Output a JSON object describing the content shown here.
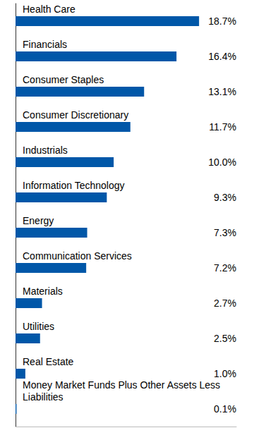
{
  "chart_data": {
    "type": "bar",
    "orientation": "horizontal",
    "categories": [
      "Health Care",
      "Financials",
      "Consumer Staples",
      "Consumer Discretionary",
      "Industrials",
      "Information Technology",
      "Energy",
      "Communication Services",
      "Materials",
      "Utilities",
      "Real Estate",
      "Money Market Funds Plus Other Assets Less Liabilities"
    ],
    "values": [
      18.7,
      16.4,
      13.1,
      11.7,
      10.0,
      9.3,
      7.3,
      7.2,
      2.7,
      2.5,
      1.0,
      0.1
    ],
    "value_labels": [
      "18.7%",
      "16.4%",
      "13.1%",
      "11.7%",
      "10.0%",
      "9.3%",
      "7.3%",
      "7.2%",
      "2.7%",
      "2.5%",
      "1.0%",
      "0.1%"
    ],
    "color": "#0057a8",
    "xlim": [
      0,
      22.5
    ],
    "xticks": [],
    "data_labels": true,
    "tick_labels": "y",
    "grid": false
  }
}
